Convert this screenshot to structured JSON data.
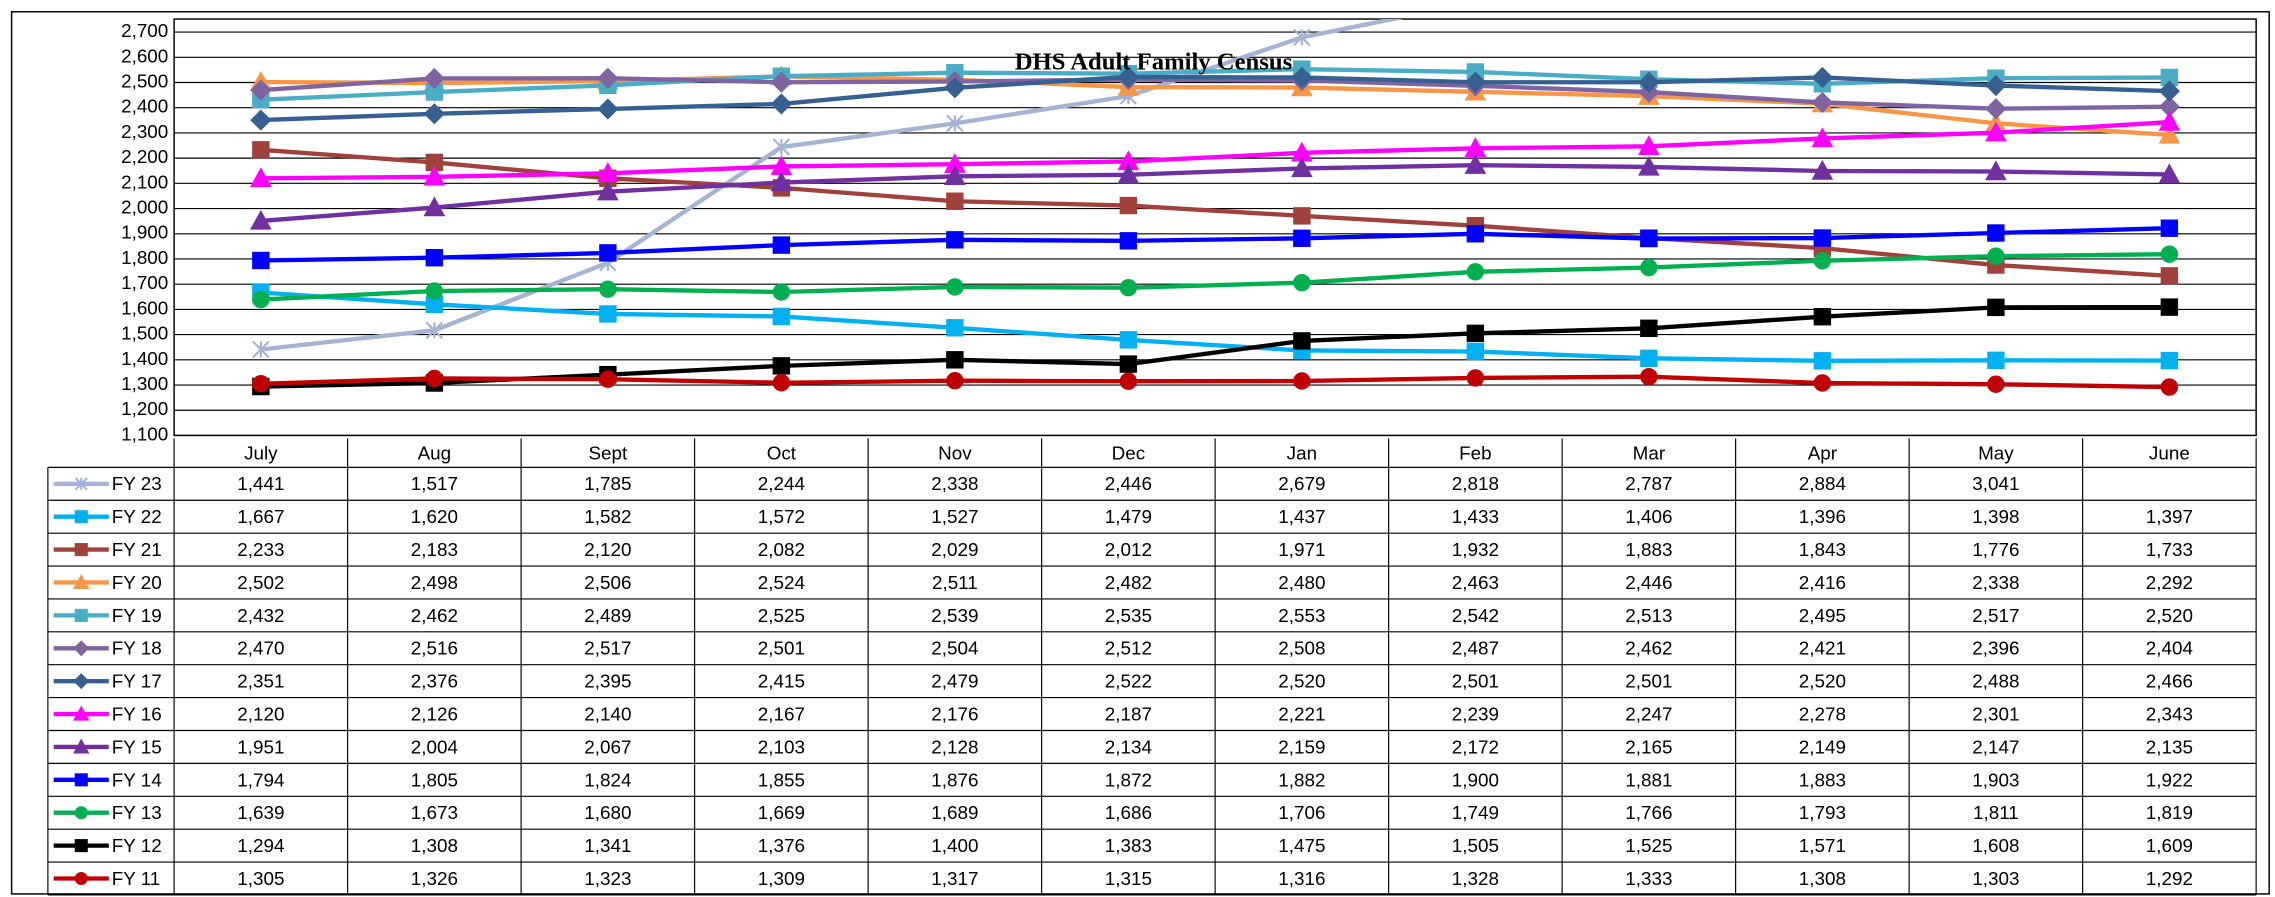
{
  "chart_data": {
    "type": "line",
    "title": "DHS Adult Family Census",
    "categories": [
      "July",
      "Aug",
      "Sept",
      "Oct",
      "Nov",
      "Dec",
      "Jan",
      "Feb",
      "Mar",
      "Apr",
      "May",
      "June"
    ],
    "ylim": [
      1100,
      2700
    ],
    "yticks": [
      {
        "value": 1100,
        "label": "1,100"
      },
      {
        "value": 1200,
        "label": "1,200"
      },
      {
        "value": 1300,
        "label": "1,300"
      },
      {
        "value": 1400,
        "label": "1,400"
      },
      {
        "value": 1500,
        "label": "1,500"
      },
      {
        "value": 1600,
        "label": "1,600"
      },
      {
        "value": 1700,
        "label": "1,700"
      },
      {
        "value": 1800,
        "label": "1,800"
      },
      {
        "value": 1900,
        "label": "1,900"
      },
      {
        "value": 2000,
        "label": "2,000"
      },
      {
        "value": 2100,
        "label": "2,100"
      },
      {
        "value": 2200,
        "label": "2,200"
      },
      {
        "value": 2300,
        "label": "2,300"
      },
      {
        "value": 2400,
        "label": "2,400"
      },
      {
        "value": 2500,
        "label": "2,500"
      },
      {
        "value": 2600,
        "label": "2,600"
      },
      {
        "value": 2700,
        "label": "2,700"
      }
    ],
    "grid": true,
    "series": [
      {
        "name": "FY 23",
        "color": "#a5b4d4",
        "marker": "x",
        "values": [
          1441,
          1517,
          1785,
          2244,
          2338,
          2446,
          2679,
          2818,
          2787,
          2884,
          3041,
          null
        ],
        "value_labels": [
          "1,441",
          "1,517",
          "1,785",
          "2,244",
          "2,338",
          "2,446",
          "2,679",
          "2,818",
          "2,787",
          "2,884",
          "3,041",
          null
        ]
      },
      {
        "name": "FY 22",
        "color": "#00b0f0",
        "marker": "square",
        "values": [
          1667,
          1620,
          1582,
          1572,
          1527,
          1479,
          1437,
          1433,
          1406,
          1396,
          1398,
          1397
        ],
        "value_labels": [
          "1,667",
          "1,620",
          "1,582",
          "1,572",
          "1,527",
          "1,479",
          "1,437",
          "1,433",
          "1,406",
          "1,396",
          "1,398",
          "1,397"
        ]
      },
      {
        "name": "FY 21",
        "color": "#a0413c",
        "marker": "square",
        "values": [
          2233,
          2183,
          2120,
          2082,
          2029,
          2012,
          1971,
          1932,
          1883,
          1843,
          1776,
          1733
        ],
        "value_labels": [
          "2,233",
          "2,183",
          "2,120",
          "2,082",
          "2,029",
          "2,012",
          "1,971",
          "1,932",
          "1,883",
          "1,843",
          "1,776",
          "1,733"
        ]
      },
      {
        "name": "FY 20",
        "color": "#f79646",
        "marker": "triangle",
        "values": [
          2502,
          2498,
          2506,
          2524,
          2511,
          2482,
          2480,
          2463,
          2446,
          2416,
          2338,
          2292
        ],
        "value_labels": [
          "2,502",
          "2,498",
          "2,506",
          "2,524",
          "2,511",
          "2,482",
          "2,480",
          "2,463",
          "2,446",
          "2,416",
          "2,338",
          "2,292"
        ]
      },
      {
        "name": "FY 19",
        "color": "#4bacc6",
        "marker": "square",
        "values": [
          2432,
          2462,
          2489,
          2525,
          2539,
          2535,
          2553,
          2542,
          2513,
          2495,
          2517,
          2520
        ],
        "value_labels": [
          "2,432",
          "2,462",
          "2,489",
          "2,525",
          "2,539",
          "2,535",
          "2,553",
          "2,542",
          "2,513",
          "2,495",
          "2,517",
          "2,520"
        ]
      },
      {
        "name": "FY 18",
        "color": "#8064a2",
        "marker": "diamond",
        "values": [
          2470,
          2516,
          2517,
          2501,
          2504,
          2512,
          2508,
          2487,
          2462,
          2421,
          2396,
          2404
        ],
        "value_labels": [
          "2,470",
          "2,516",
          "2,517",
          "2,501",
          "2,504",
          "2,512",
          "2,508",
          "2,487",
          "2,462",
          "2,421",
          "2,396",
          "2,404"
        ]
      },
      {
        "name": "FY 17",
        "color": "#376092",
        "marker": "diamond",
        "values": [
          2351,
          2376,
          2395,
          2415,
          2479,
          2522,
          2520,
          2501,
          2501,
          2520,
          2488,
          2466
        ],
        "value_labels": [
          "2,351",
          "2,376",
          "2,395",
          "2,415",
          "2,479",
          "2,522",
          "2,520",
          "2,501",
          "2,501",
          "2,520",
          "2,488",
          "2,466"
        ]
      },
      {
        "name": "FY 16",
        "color": "#ff00ff",
        "marker": "triangle",
        "values": [
          2120,
          2126,
          2140,
          2167,
          2176,
          2187,
          2221,
          2239,
          2247,
          2278,
          2301,
          2343
        ],
        "value_labels": [
          "2,120",
          "2,126",
          "2,140",
          "2,167",
          "2,176",
          "2,187",
          "2,221",
          "2,239",
          "2,247",
          "2,278",
          "2,301",
          "2,343"
        ]
      },
      {
        "name": "FY 15",
        "color": "#7030a0",
        "marker": "triangle",
        "values": [
          1951,
          2004,
          2067,
          2103,
          2128,
          2134,
          2159,
          2172,
          2165,
          2149,
          2147,
          2135
        ],
        "value_labels": [
          "1,951",
          "2,004",
          "2,067",
          "2,103",
          "2,128",
          "2,134",
          "2,159",
          "2,172",
          "2,165",
          "2,149",
          "2,147",
          "2,135"
        ]
      },
      {
        "name": "FY 14",
        "color": "#0000ff",
        "marker": "square",
        "values": [
          1794,
          1805,
          1824,
          1855,
          1876,
          1872,
          1882,
          1900,
          1881,
          1883,
          1903,
          1922
        ],
        "value_labels": [
          "1,794",
          "1,805",
          "1,824",
          "1,855",
          "1,876",
          "1,872",
          "1,882",
          "1,900",
          "1,881",
          "1,883",
          "1,903",
          "1,922"
        ]
      },
      {
        "name": "FY 13",
        "color": "#00b050",
        "marker": "circle",
        "values": [
          1639,
          1673,
          1680,
          1669,
          1689,
          1686,
          1706,
          1749,
          1766,
          1793,
          1811,
          1819
        ],
        "value_labels": [
          "1,639",
          "1,673",
          "1,680",
          "1,669",
          "1,689",
          "1,686",
          "1,706",
          "1,749",
          "1,766",
          "1,793",
          "1,811",
          "1,819"
        ]
      },
      {
        "name": "FY 12",
        "color": "#000000",
        "marker": "square",
        "values": [
          1294,
          1308,
          1341,
          1376,
          1400,
          1383,
          1475,
          1505,
          1525,
          1571,
          1608,
          1609
        ],
        "value_labels": [
          "1,294",
          "1,308",
          "1,341",
          "1,376",
          "1,400",
          "1,383",
          "1,475",
          "1,505",
          "1,525",
          "1,571",
          "1,608",
          "1,609"
        ]
      },
      {
        "name": "FY 11",
        "color": "#c00000",
        "marker": "circle",
        "values": [
          1305,
          1326,
          1323,
          1309,
          1317,
          1315,
          1316,
          1328,
          1333,
          1308,
          1303,
          1292
        ],
        "value_labels": [
          "1,305",
          "1,326",
          "1,323",
          "1,309",
          "1,317",
          "1,315",
          "1,316",
          "1,328",
          "1,333",
          "1,308",
          "1,303",
          "1,292"
        ]
      }
    ]
  }
}
